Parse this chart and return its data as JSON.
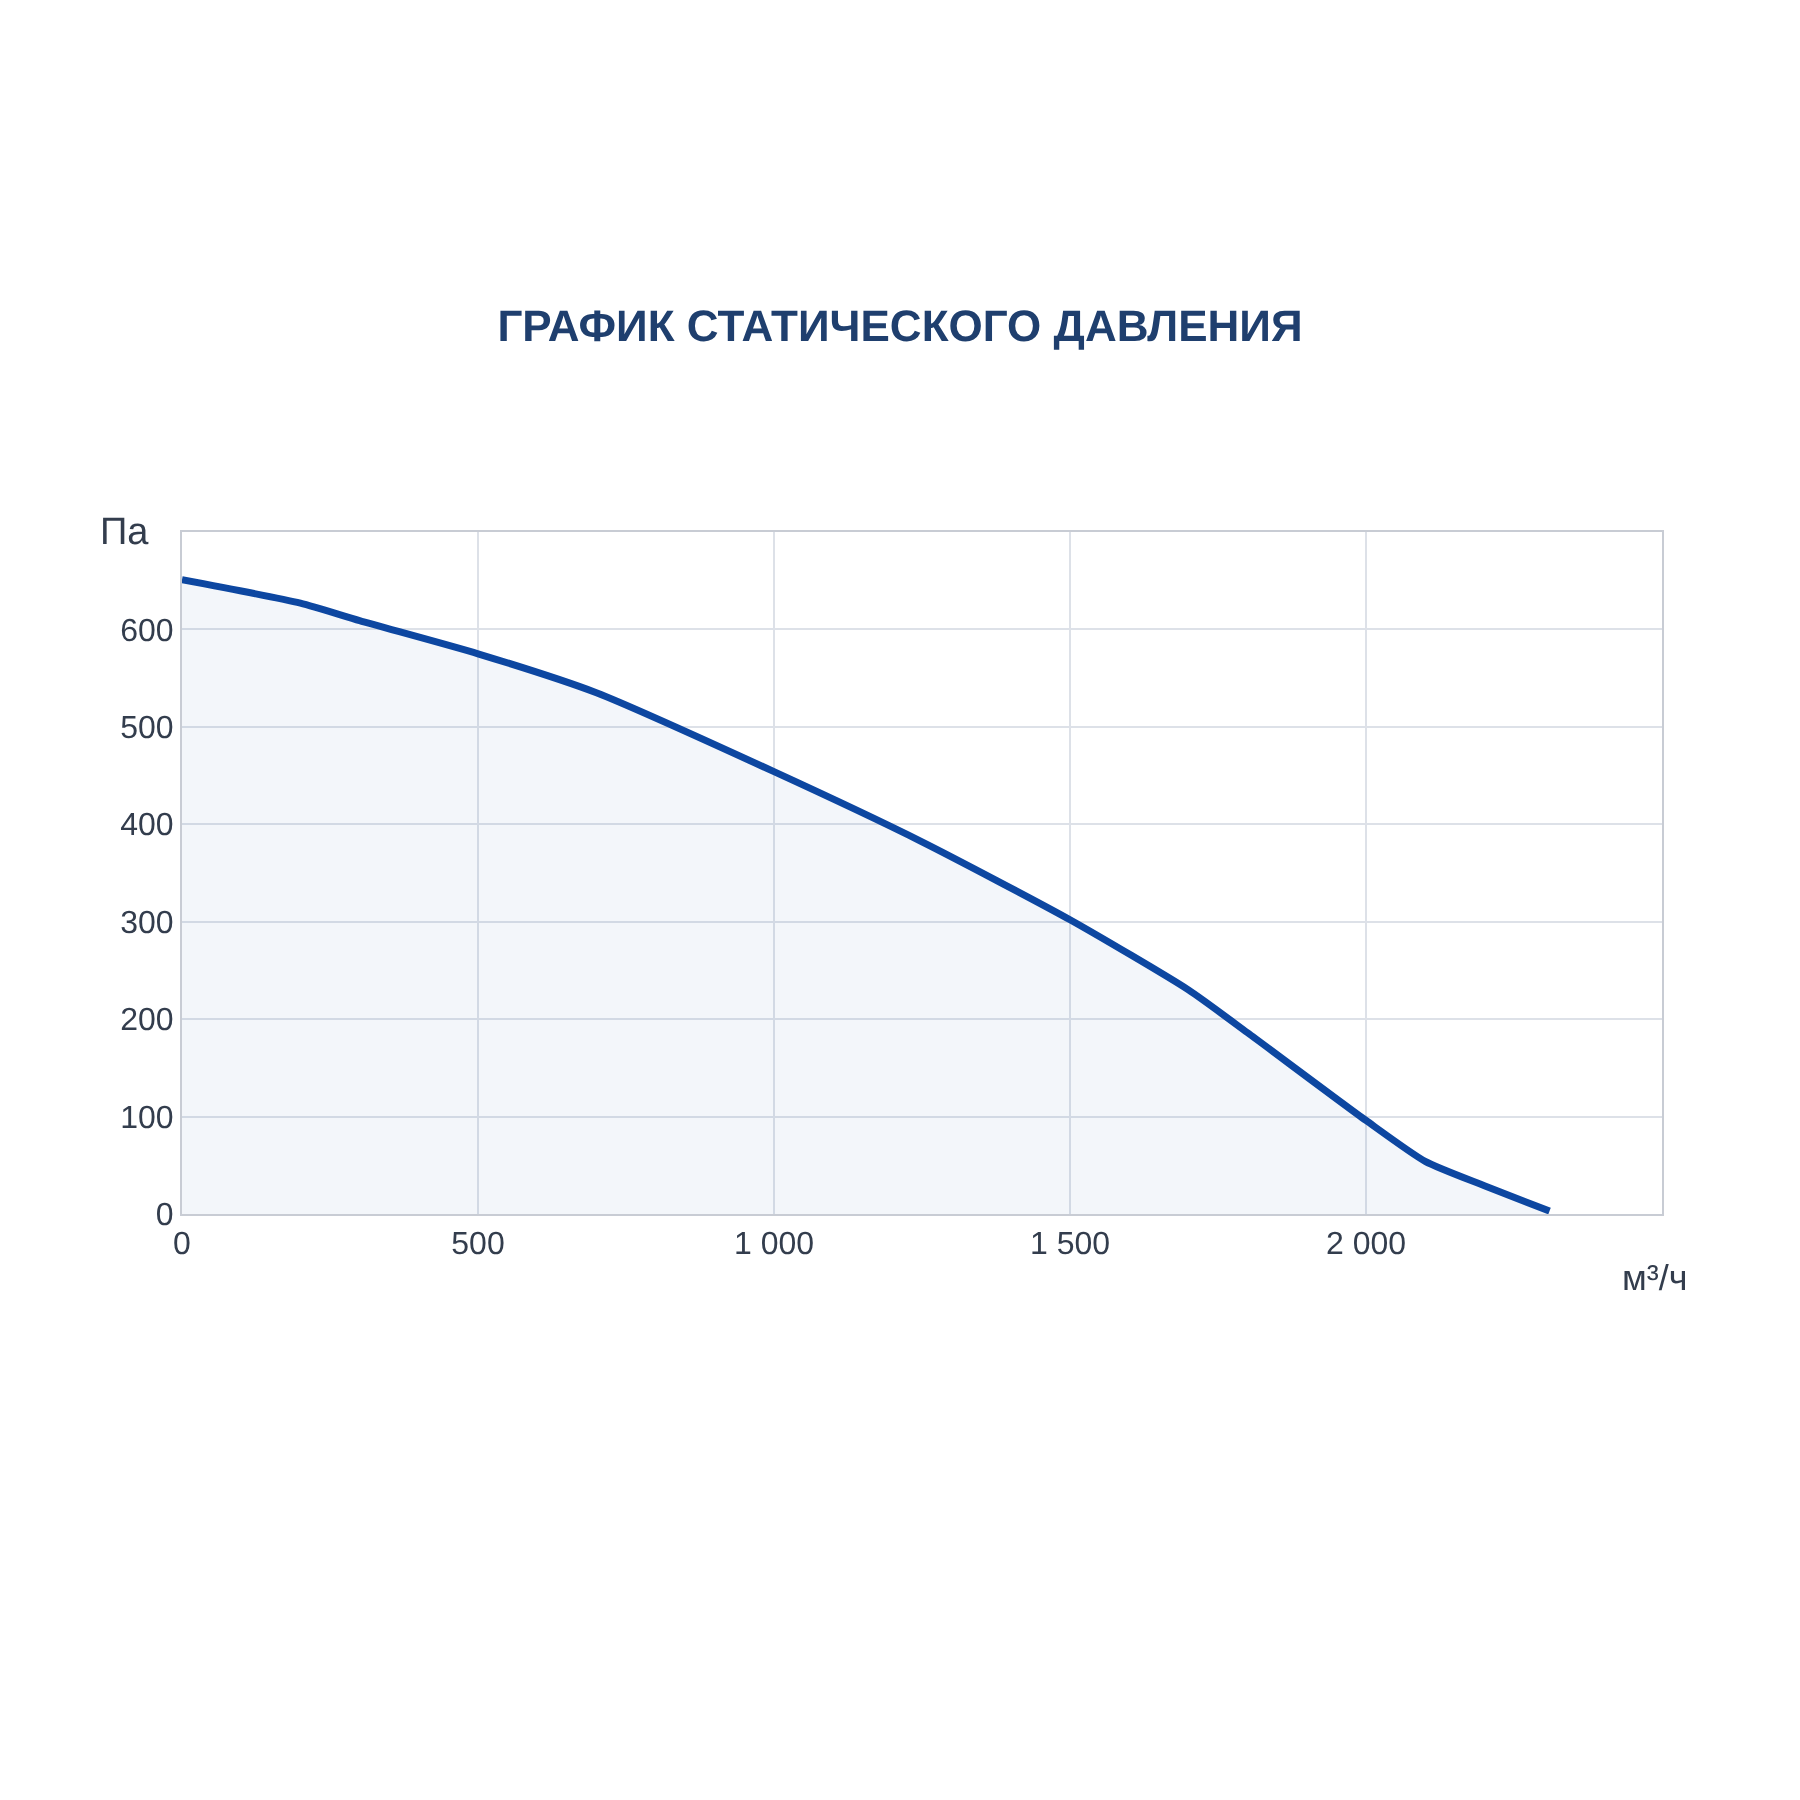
{
  "chart_data": {
    "type": "area",
    "title": "ГРАФИК СТАТИЧЕСКОГО ДАВЛЕНИЯ",
    "xlabel": "м³/ч",
    "ylabel": "Па",
    "x": [
      0,
      200,
      300,
      500,
      700,
      1000,
      1250,
      1500,
      1700,
      1800,
      2000,
      2100,
      2200,
      2310
    ],
    "series": [
      {
        "color": "#0d47a1",
        "values": [
          651,
          627,
          609,
          575,
          535,
          454,
          382,
          302,
          230,
          186,
          96,
          54,
          29,
          3
        ]
      }
    ],
    "xlim": [
      0,
      2500
    ],
    "xticks": [
      0,
      500,
      {
        "value": 1000,
        "label": "1 000"
      },
      {
        "value": 1500,
        "label": "1 500"
      },
      {
        "value": 2000,
        "label": "2 000"
      }
    ],
    "ylim": [
      0,
      700
    ],
    "yticks": [
      0,
      100,
      200,
      300,
      400,
      500,
      600
    ],
    "grid": true,
    "legend": false,
    "marker": "none",
    "line_style": "solid"
  }
}
